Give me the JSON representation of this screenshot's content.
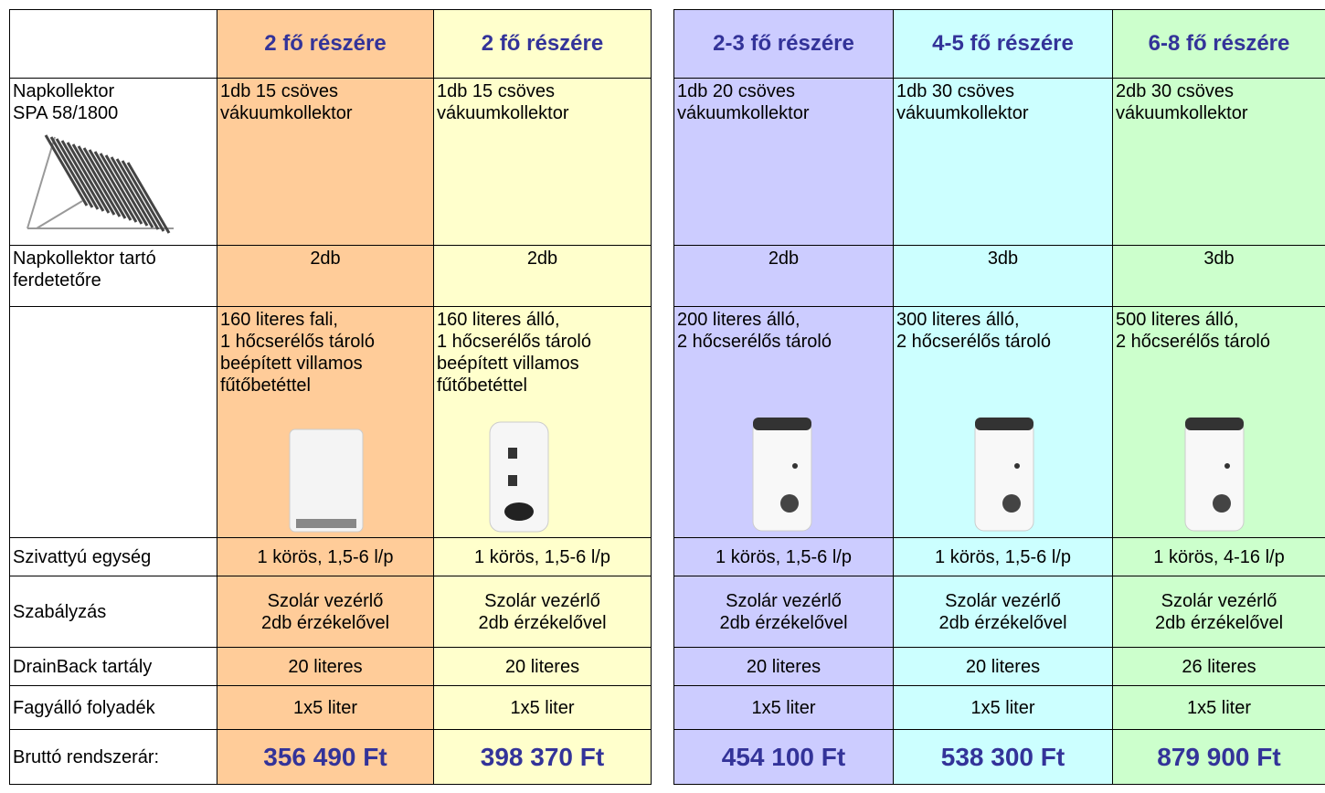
{
  "table": {
    "columns": [
      {
        "header": "2 fő részére",
        "color": "#ffcc99"
      },
      {
        "header": "2 fő részére",
        "color": "#ffffcc"
      },
      {
        "header": "2-3 fő részére",
        "color": "#ccccff"
      },
      {
        "header": "4-5 fő részére",
        "color": "#ccffff"
      },
      {
        "header": "6-8 fő részére",
        "color": "#ccffcc"
      }
    ],
    "rows": [
      {
        "label": "Napkollektor\nSPA 58/1800",
        "cells": [
          "1db 15 csöves vákuumkollektor",
          "1db 15 csöves vákuumkollektor",
          "1db 20 csöves vákuumkollektor",
          "1db 30 csöves vákuumkollektor",
          "2db 30 csöves vákuumkollektor"
        ]
      },
      {
        "label": "Napkollektor tartó\nferdetetőre",
        "cells": [
          "2db",
          "2db",
          "2db",
          "3db",
          "3db"
        ]
      },
      {
        "cells": [
          "160 literes fali,\n1 hőcserélős tároló\nbeépített villamos\nfűtőbetéttel",
          "160 literes álló,\n1 hőcserélős tároló\nbeépített villamos\nfűtőbetéttel",
          "200 literes álló,\n2 hőcserélős tároló",
          "300 literes álló,\n2 hőcserélős tároló",
          "500 literes álló,\n2 hőcserélős tároló"
        ]
      },
      {
        "label": "Szivattyú egység",
        "cells": [
          "1 körös,  1,5-6 l/p",
          "1 körös,  1,5-6 l/p",
          "1 körös,  1,5-6 l/p",
          "1 körös,  1,5-6 l/p",
          "1 körös, 4-16 l/p"
        ]
      },
      {
        "label": "Szabályzás",
        "cells": [
          "Szolár vezérlő\n2db érzékelővel",
          "Szolár vezérlő\n2db érzékelővel",
          "Szolár vezérlő\n2db érzékelővel",
          "Szolár vezérlő\n2db érzékelővel",
          "Szolár vezérlő\n2db érzékelővel"
        ]
      },
      {
        "label": "DrainBack tartály",
        "cells": [
          "20 literes",
          "20 literes",
          "20 literes",
          "20 literes",
          "26 literes"
        ]
      },
      {
        "label": "Fagyálló folyadék",
        "cells": [
          "1x5 liter",
          "1x5 liter",
          "1x5 liter",
          "1x5 liter",
          "1x5 liter"
        ]
      },
      {
        "label": "Bruttó rendszerár:",
        "cells": [
          "356 490 Ft",
          "398 370 Ft",
          "454 100 Ft",
          "538 300 Ft",
          "879 900 Ft"
        ]
      }
    ]
  }
}
